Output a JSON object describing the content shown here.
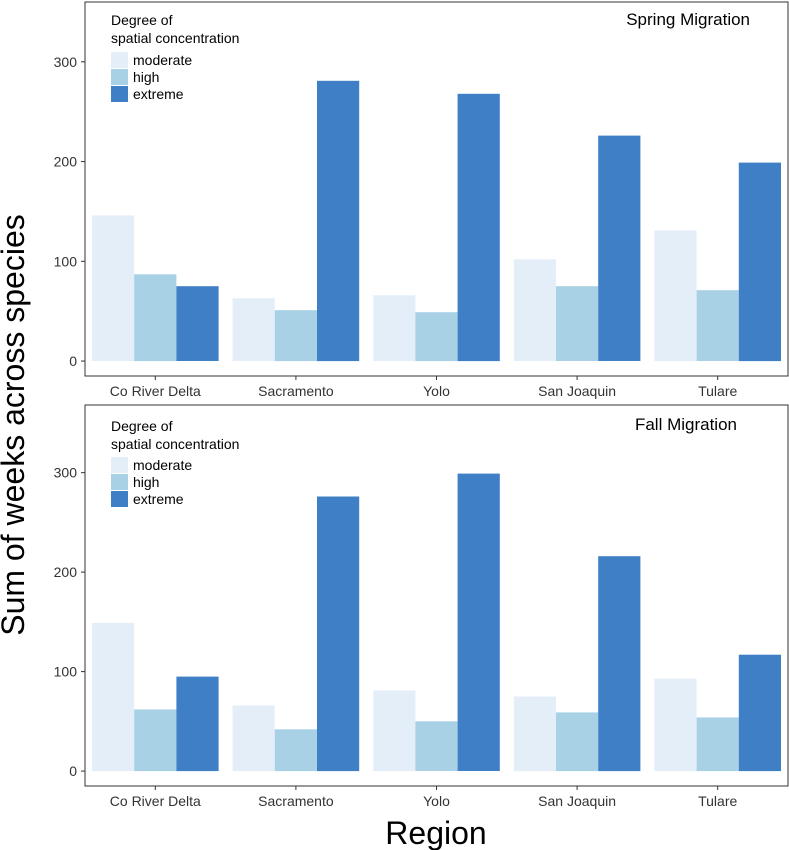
{
  "figure": {
    "ylabel": "Sum of weeks across species",
    "xlabel": "Region"
  },
  "legend": {
    "title_line1": "Degree of",
    "title_line2": "spatial concentration"
  },
  "colors": {
    "moderate": "#e4eef8",
    "high": "#a8d1e6",
    "extreme": "#3f7fc6"
  },
  "chart_data": [
    {
      "type": "bar",
      "title": "Spring Migration",
      "categories": [
        "Co River Delta",
        "Sacramento",
        "Yolo",
        "San Joaquin",
        "Tulare"
      ],
      "series": [
        {
          "name": "moderate",
          "values": [
            146,
            63,
            66,
            102,
            131
          ]
        },
        {
          "name": "high",
          "values": [
            87,
            51,
            49,
            75,
            71
          ]
        },
        {
          "name": "extreme",
          "values": [
            75,
            281,
            268,
            226,
            199
          ]
        }
      ],
      "yticks": [
        0,
        100,
        200,
        300
      ],
      "ylim": [
        -15,
        360
      ],
      "grid": false,
      "legend_position": "top-left"
    },
    {
      "type": "bar",
      "title": "Fall Migration",
      "categories": [
        "Co River Delta",
        "Sacramento",
        "Yolo",
        "San Joaquin",
        "Tulare"
      ],
      "series": [
        {
          "name": "moderate",
          "values": [
            149,
            66,
            81,
            75,
            93
          ]
        },
        {
          "name": "high",
          "values": [
            62,
            42,
            50,
            59,
            54
          ]
        },
        {
          "name": "extreme",
          "values": [
            95,
            276,
            299,
            216,
            117
          ]
        }
      ],
      "yticks": [
        0,
        100,
        200,
        300
      ],
      "ylim": [
        -15,
        368
      ],
      "grid": false,
      "legend_position": "top-left"
    }
  ]
}
